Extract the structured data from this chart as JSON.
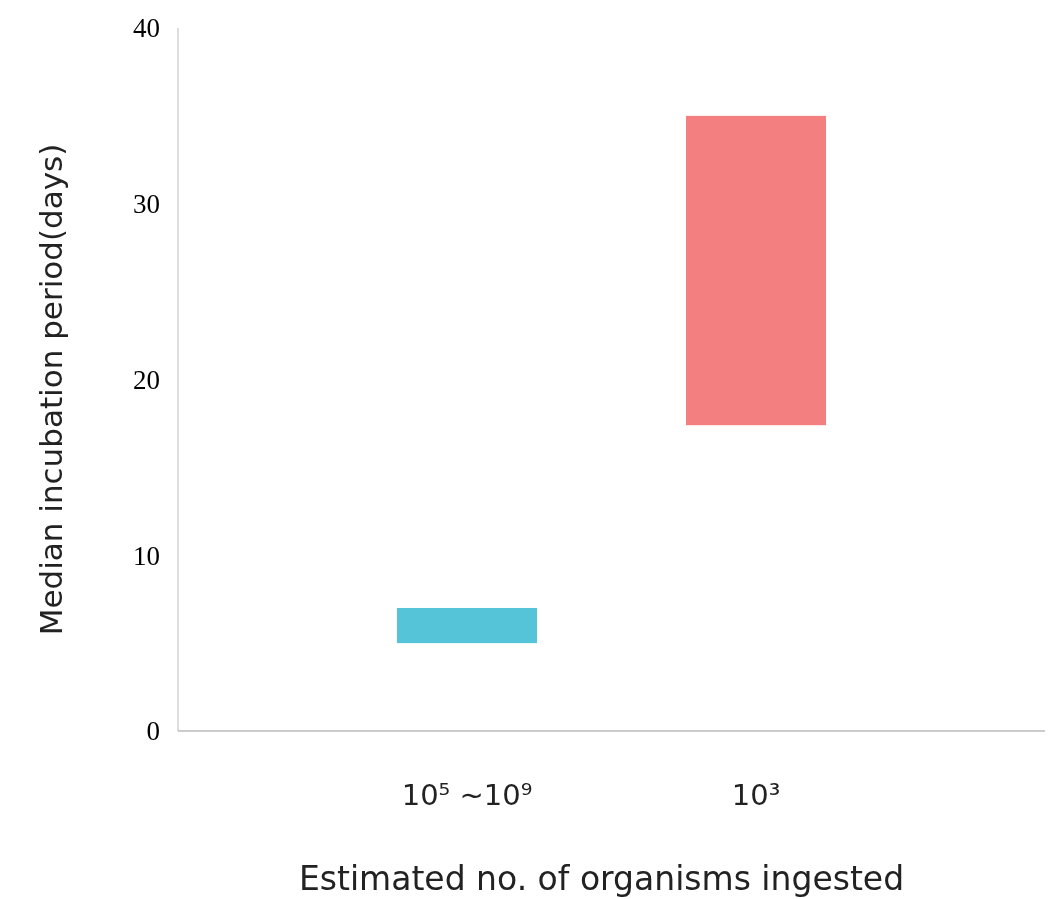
{
  "chart_data": {
    "type": "bar",
    "categories": [
      "10⁵ ~10⁹",
      "10³"
    ],
    "base": [
      5,
      17.4
    ],
    "values": [
      2,
      17.6
    ],
    "colors": [
      "#56c4d8",
      "#f47f80"
    ],
    "ylim": [
      0,
      40
    ],
    "yticks": [
      0,
      10,
      20,
      30,
      40
    ],
    "xlabel": "Estimated no. of organisms ingested",
    "ylabel": "Median incubation period(days)"
  }
}
